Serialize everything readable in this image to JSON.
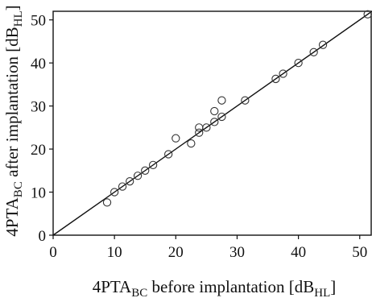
{
  "chart_data": {
    "type": "scatter",
    "title": "",
    "xlabel": {
      "main": "4PTA",
      "sub": "BC",
      "rest": " before implantation [dB",
      "unit_sub": "HL",
      "close": "]"
    },
    "ylabel": {
      "main": "4PTA",
      "sub": "BC",
      "rest": " after implantation [dB",
      "unit_sub": "HL",
      "close": "]"
    },
    "xlim": [
      0,
      52
    ],
    "ylim": [
      0,
      52
    ],
    "xticks": [
      0,
      10,
      20,
      30,
      40,
      50
    ],
    "yticks": [
      0,
      10,
      20,
      30,
      40,
      50
    ],
    "grid": false,
    "identity_line": {
      "from": [
        0,
        0
      ],
      "to": [
        52,
        52
      ]
    },
    "series": [
      {
        "marker": "open-circle",
        "color": "#333333",
        "points": [
          [
            8.8,
            7.6
          ],
          [
            10.0,
            10.0
          ],
          [
            11.3,
            11.3
          ],
          [
            12.5,
            12.5
          ],
          [
            13.8,
            13.8
          ],
          [
            15.0,
            15.0
          ],
          [
            16.3,
            16.3
          ],
          [
            18.8,
            18.8
          ],
          [
            20.0,
            22.5
          ],
          [
            22.5,
            21.3
          ],
          [
            23.8,
            23.8
          ],
          [
            23.8,
            25.0
          ],
          [
            25.0,
            25.0
          ],
          [
            26.3,
            26.3
          ],
          [
            26.3,
            28.8
          ],
          [
            27.5,
            27.5
          ],
          [
            27.5,
            31.3
          ],
          [
            31.3,
            31.3
          ],
          [
            36.3,
            36.3
          ],
          [
            37.5,
            37.5
          ],
          [
            40.0,
            40.0
          ],
          [
            42.5,
            42.5
          ],
          [
            44.0,
            44.2
          ],
          [
            51.3,
            51.3
          ]
        ]
      }
    ]
  }
}
